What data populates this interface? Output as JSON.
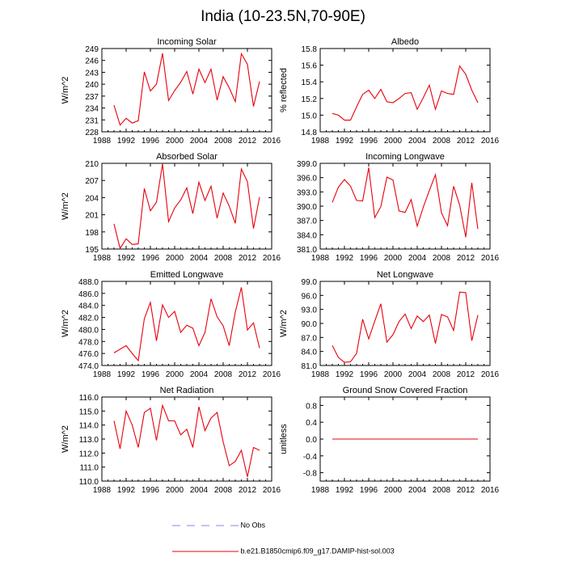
{
  "title": "India (10-23.5N,70-90E)",
  "colors": {
    "model": "#e8000b",
    "obs": "#8a8ae6",
    "axis": "#000000",
    "background": "#ffffff"
  },
  "legend": [
    {
      "label": "No Obs",
      "style": "dashed",
      "color": "#8a8ae6"
    },
    {
      "label": "b.e21.B1850cmip6.f09_g17.DAMIP-hist-sol.003",
      "style": "solid",
      "color": "#e8000b"
    }
  ],
  "chart_data": [
    {
      "type": "line",
      "title": "Incoming Solar",
      "ylabel": "W/m^2",
      "xlim": [
        1988,
        2016
      ],
      "ylim": [
        228,
        249
      ],
      "xticks": [
        1988,
        1992,
        1996,
        2000,
        2004,
        2008,
        2012,
        2016
      ],
      "yticks": [
        "228",
        "231",
        "234",
        "237",
        "240",
        "243",
        "246",
        "249"
      ],
      "x": [
        1990,
        1991,
        1992,
        1993,
        1994,
        1995,
        1996,
        1997,
        1998,
        1999,
        2000,
        2001,
        2002,
        2003,
        2004,
        2005,
        2006,
        2007,
        2008,
        2009,
        2010,
        2011,
        2012,
        2013,
        2014
      ],
      "series": [
        {
          "values": [
            234.7,
            229.7,
            231.4,
            230.2,
            230.8,
            243.1,
            238.3,
            240.0,
            247.8,
            235.9,
            238.4,
            240.5,
            243.2,
            237.5,
            243.8,
            240.4,
            243.8,
            236.0,
            241.9,
            239.1,
            235.6,
            247.7,
            245.0,
            234.4,
            240.7
          ]
        }
      ]
    },
    {
      "type": "line",
      "title": "Albedo",
      "ylabel": "% reflected",
      "xlim": [
        1988,
        2016
      ],
      "ylim": [
        14.8,
        15.8
      ],
      "xticks": [
        1988,
        1992,
        1996,
        2000,
        2004,
        2008,
        2012,
        2016
      ],
      "yticks": [
        "14.8",
        "15.0",
        "15.2",
        "15.4",
        "15.6",
        "15.8"
      ],
      "x": [
        1990,
        1991,
        1992,
        1993,
        1994,
        1995,
        1996,
        1997,
        1998,
        1999,
        2000,
        2001,
        2002,
        2003,
        2004,
        2005,
        2006,
        2007,
        2008,
        2009,
        2010,
        2011,
        2012,
        2013,
        2014
      ],
      "series": [
        {
          "values": [
            15.02,
            15.0,
            14.94,
            14.94,
            15.1,
            15.25,
            15.3,
            15.2,
            15.31,
            15.16,
            15.15,
            15.2,
            15.26,
            15.27,
            15.07,
            15.21,
            15.36,
            15.07,
            15.29,
            15.26,
            15.25,
            15.59,
            15.49,
            15.3,
            15.15
          ]
        }
      ]
    },
    {
      "type": "line",
      "title": "Absorbed Solar",
      "ylabel": "W/m^2",
      "xlim": [
        1988,
        2016
      ],
      "ylim": [
        195,
        210
      ],
      "xticks": [
        1988,
        1992,
        1996,
        2000,
        2004,
        2008,
        2012,
        2016
      ],
      "yticks": [
        "195",
        "198",
        "201",
        "204",
        "207",
        "210"
      ],
      "x": [
        1990,
        1991,
        1992,
        1993,
        1994,
        1995,
        1996,
        1997,
        1998,
        1999,
        2000,
        2001,
        2002,
        2003,
        2004,
        2005,
        2006,
        2007,
        2008,
        2009,
        2010,
        2011,
        2012,
        2013,
        2014
      ],
      "series": [
        {
          "values": [
            199.4,
            195.1,
            196.8,
            195.8,
            195.9,
            205.6,
            201.7,
            203.2,
            209.9,
            199.8,
            202.2,
            203.6,
            205.7,
            201.2,
            206.7,
            203.5,
            206.0,
            200.4,
            204.8,
            202.5,
            199.5,
            209.0,
            206.8,
            198.6,
            204.1
          ]
        }
      ]
    },
    {
      "type": "line",
      "title": "Incoming Longwave",
      "ylabel": "",
      "xlim": [
        1988,
        2016
      ],
      "ylim": [
        381.0,
        399.0
      ],
      "xticks": [
        1988,
        1992,
        1996,
        2000,
        2004,
        2008,
        2012,
        2016
      ],
      "yticks": [
        "381.0",
        "384.0",
        "387.0",
        "390.0",
        "393.0",
        "396.0",
        "399.0"
      ],
      "x": [
        1990,
        1991,
        1992,
        1993,
        1994,
        1995,
        1996,
        1997,
        1998,
        1999,
        2000,
        2001,
        2002,
        2003,
        2004,
        2005,
        2006,
        2007,
        2008,
        2009,
        2010,
        2011,
        2012,
        2013,
        2014
      ],
      "series": [
        {
          "values": [
            390.8,
            394.0,
            395.6,
            394.2,
            391.2,
            391.1,
            398.1,
            387.6,
            389.9,
            396.1,
            395.5,
            389.0,
            388.7,
            391.4,
            385.8,
            389.8,
            393.3,
            396.6,
            388.6,
            385.9,
            394.2,
            390.2,
            383.5,
            394.9,
            385.2
          ]
        }
      ]
    },
    {
      "type": "line",
      "title": "Emitted Longwave",
      "ylabel": "W/m^2",
      "xlim": [
        1988,
        2016
      ],
      "ylim": [
        474.0,
        488.0
      ],
      "xticks": [
        1988,
        1992,
        1996,
        2000,
        2004,
        2008,
        2012,
        2016
      ],
      "yticks": [
        "474.0",
        "476.0",
        "478.0",
        "480.0",
        "482.0",
        "484.0",
        "486.0",
        "488.0"
      ],
      "x": [
        1990,
        1991,
        1992,
        1993,
        1994,
        1995,
        1996,
        1997,
        1998,
        1999,
        2000,
        2001,
        2002,
        2003,
        2004,
        2005,
        2006,
        2007,
        2008,
        2009,
        2010,
        2011,
        2012,
        2013,
        2014
      ],
      "series": [
        {
          "values": [
            476.1,
            476.7,
            477.3,
            476.0,
            474.8,
            481.8,
            484.5,
            478.1,
            484.1,
            482.0,
            483.0,
            479.5,
            480.7,
            480.2,
            477.3,
            479.5,
            485.1,
            482.1,
            480.6,
            477.3,
            482.9,
            487.0,
            479.9,
            481.1,
            476.9
          ]
        }
      ]
    },
    {
      "type": "line",
      "title": "Net Longwave",
      "ylabel": "W/m^2",
      "xlim": [
        1988,
        2016
      ],
      "ylim": [
        81.0,
        99.0
      ],
      "xticks": [
        1988,
        1992,
        1996,
        2000,
        2004,
        2008,
        2012,
        2016
      ],
      "yticks": [
        "81.0",
        "84.0",
        "87.0",
        "90.0",
        "93.0",
        "96.0",
        "99.0"
      ],
      "x": [
        1990,
        1991,
        1992,
        1993,
        1994,
        1995,
        1996,
        1997,
        1998,
        1999,
        2000,
        2001,
        2002,
        2003,
        2004,
        2005,
        2006,
        2007,
        2008,
        2009,
        2010,
        2011,
        2012,
        2013,
        2014
      ],
      "series": [
        {
          "values": [
            85.3,
            82.7,
            81.7,
            81.8,
            83.6,
            90.9,
            86.7,
            90.5,
            94.2,
            86.0,
            87.6,
            90.4,
            92.0,
            88.9,
            91.6,
            90.4,
            91.8,
            85.7,
            91.9,
            91.4,
            88.5,
            96.7,
            96.6,
            86.3,
            91.8
          ]
        }
      ]
    },
    {
      "type": "line",
      "title": "Net Radiation",
      "ylabel": "W/m^2",
      "xlim": [
        1988,
        2016
      ],
      "ylim": [
        110.0,
        116.0
      ],
      "xticks": [
        1988,
        1992,
        1996,
        2000,
        2004,
        2008,
        2012,
        2016
      ],
      "yticks": [
        "110.0",
        "111.0",
        "112.0",
        "113.0",
        "114.0",
        "115.0",
        "116.0"
      ],
      "x": [
        1990,
        1991,
        1992,
        1993,
        1994,
        1995,
        1996,
        1997,
        1998,
        1999,
        2000,
        2001,
        2002,
        2003,
        2004,
        2005,
        2006,
        2007,
        2008,
        2009,
        2010,
        2011,
        2012,
        2013,
        2014
      ],
      "series": [
        {
          "values": [
            114.3,
            112.3,
            115.0,
            114.0,
            112.4,
            114.9,
            115.2,
            112.9,
            115.4,
            114.3,
            114.3,
            113.3,
            113.7,
            112.4,
            115.3,
            113.6,
            114.5,
            114.9,
            112.8,
            111.1,
            111.4,
            112.2,
            110.3,
            112.4,
            112.2
          ]
        }
      ]
    },
    {
      "type": "line",
      "title": "Ground Snow Covered Fraction",
      "ylabel": "unitless",
      "xlim": [
        1988,
        2016
      ],
      "ylim": [
        -1.0,
        1.0
      ],
      "xticks": [
        1988,
        1992,
        1996,
        2000,
        2004,
        2008,
        2012,
        2016
      ],
      "yticks": [
        "-0.8",
        "-0.4",
        "0.0",
        "0.4",
        "0.8"
      ],
      "ytick_values": [
        -0.8,
        -0.4,
        0.0,
        0.4,
        0.8
      ],
      "x": [
        1990,
        2014
      ],
      "series": [
        {
          "values": [
            0.0,
            0.0
          ]
        }
      ]
    }
  ]
}
